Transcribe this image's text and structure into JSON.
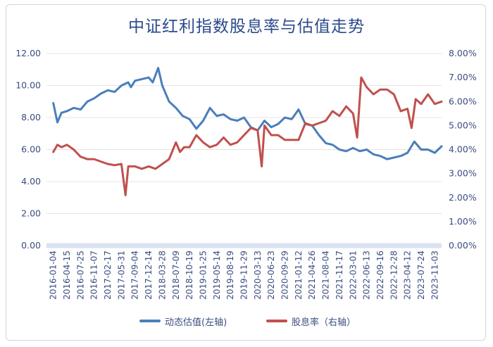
{
  "chart_data": {
    "type": "line",
    "title": "中证红利指数股息率与估值走势",
    "y_left": {
      "ticks": [
        "12.00",
        "10.00",
        "8.00",
        "6.00",
        "4.00",
        "2.00",
        "0.00"
      ],
      "range": [
        0,
        12
      ]
    },
    "y_right": {
      "ticks": [
        "8.00%",
        "7.00%",
        "6.00%",
        "5.00%",
        "4.00%",
        "3.00%",
        "2.00%",
        "1.00%",
        "0.00%"
      ],
      "range": [
        0,
        8
      ]
    },
    "x_ticks": [
      "2016-01-04",
      "2016-04-15",
      "2016-07-25",
      "2016-11-07",
      "2017-02-17",
      "2017-05-31",
      "2017-09-04",
      "2017-12-14",
      "2018-03-28",
      "2018-07-09",
      "2018-10-19",
      "2019-01-25",
      "2019-05-14",
      "2019-08-19",
      "2019-11-29",
      "2020-03-13",
      "2020-06-23",
      "2020-09-29",
      "2021-01-12",
      "2021-04-26",
      "2021-08-04",
      "2021-11-17",
      "2022-03-01",
      "2022-06-13",
      "2022-09-16",
      "2022-12-28",
      "2023-04-12",
      "2023-07-24",
      "2023-11-03"
    ],
    "grid": true,
    "legend_position": "bottom",
    "series": [
      {
        "name": "动态估值(左轴)",
        "axis": "left",
        "color": "#4a7ebb",
        "points": [
          [
            0,
            8.9
          ],
          [
            0.3,
            7.7
          ],
          [
            0.6,
            8.3
          ],
          [
            1,
            8.4
          ],
          [
            1.5,
            8.6
          ],
          [
            2,
            8.5
          ],
          [
            2.5,
            9
          ],
          [
            3,
            9.2
          ],
          [
            3.5,
            9.5
          ],
          [
            4,
            9.7
          ],
          [
            4.5,
            9.6
          ],
          [
            5,
            10
          ],
          [
            5.5,
            10.2
          ],
          [
            5.7,
            9.9
          ],
          [
            6,
            10.3
          ],
          [
            6.5,
            10.4
          ],
          [
            7,
            10.5
          ],
          [
            7.3,
            10.2
          ],
          [
            7.7,
            11.1
          ],
          [
            8,
            10
          ],
          [
            8.5,
            9
          ],
          [
            9,
            8.6
          ],
          [
            9.5,
            8.1
          ],
          [
            10,
            7.9
          ],
          [
            10.5,
            7.3
          ],
          [
            11,
            7.8
          ],
          [
            11.5,
            8.6
          ],
          [
            12,
            8.1
          ],
          [
            12.5,
            8.2
          ],
          [
            13,
            7.9
          ],
          [
            13.5,
            7.8
          ],
          [
            14,
            8
          ],
          [
            14.5,
            7.4
          ],
          [
            15,
            7.2
          ],
          [
            15.5,
            7.8
          ],
          [
            16,
            7.4
          ],
          [
            16.5,
            7.6
          ],
          [
            17,
            8
          ],
          [
            17.5,
            7.9
          ],
          [
            18,
            8.5
          ],
          [
            18.5,
            7.6
          ],
          [
            19,
            7.5
          ],
          [
            19.5,
            6.9
          ],
          [
            20,
            6.4
          ],
          [
            20.5,
            6.3
          ],
          [
            21,
            6
          ],
          [
            21.5,
            5.9
          ],
          [
            22,
            6.1
          ],
          [
            22.5,
            5.9
          ],
          [
            23,
            6
          ],
          [
            23.5,
            5.7
          ],
          [
            24,
            5.6
          ],
          [
            24.5,
            5.4
          ],
          [
            25,
            5.5
          ],
          [
            25.5,
            5.6
          ],
          [
            26,
            5.8
          ],
          [
            26.5,
            6.5
          ],
          [
            27,
            6
          ],
          [
            27.5,
            6
          ],
          [
            28,
            5.8
          ],
          [
            28.5,
            6.2
          ]
        ]
      },
      {
        "name": "股息率（右轴）",
        "axis": "right",
        "color": "#c0504d",
        "points": [
          [
            0,
            3.9
          ],
          [
            0.3,
            4.2
          ],
          [
            0.6,
            4.1
          ],
          [
            1,
            4.2
          ],
          [
            1.5,
            4.0
          ],
          [
            2,
            3.7
          ],
          [
            2.5,
            3.6
          ],
          [
            3,
            3.6
          ],
          [
            3.5,
            3.5
          ],
          [
            4,
            3.4
          ],
          [
            4.5,
            3.35
          ],
          [
            5,
            3.4
          ],
          [
            5.3,
            2.1
          ],
          [
            5.5,
            3.3
          ],
          [
            6,
            3.3
          ],
          [
            6.5,
            3.2
          ],
          [
            7,
            3.3
          ],
          [
            7.5,
            3.2
          ],
          [
            8,
            3.4
          ],
          [
            8.5,
            3.6
          ],
          [
            9,
            4.3
          ],
          [
            9.3,
            3.9
          ],
          [
            9.6,
            4.1
          ],
          [
            10,
            4.1
          ],
          [
            10.5,
            4.6
          ],
          [
            11,
            4.3
          ],
          [
            11.5,
            4.1
          ],
          [
            12,
            4.2
          ],
          [
            12.5,
            4.5
          ],
          [
            13,
            4.2
          ],
          [
            13.5,
            4.3
          ],
          [
            14,
            4.6
          ],
          [
            14.5,
            4.9
          ],
          [
            15,
            4.8
          ],
          [
            15.3,
            3.3
          ],
          [
            15.5,
            5.0
          ],
          [
            16,
            4.6
          ],
          [
            16.5,
            4.6
          ],
          [
            17,
            4.4
          ],
          [
            17.5,
            4.4
          ],
          [
            18,
            4.4
          ],
          [
            18.5,
            5.1
          ],
          [
            19,
            5.0
          ],
          [
            19.5,
            5.1
          ],
          [
            20,
            5.2
          ],
          [
            20.5,
            5.6
          ],
          [
            21,
            5.4
          ],
          [
            21.5,
            5.8
          ],
          [
            22,
            5.5
          ],
          [
            22.3,
            4.5
          ],
          [
            22.6,
            7.0
          ],
          [
            23,
            6.6
          ],
          [
            23.5,
            6.3
          ],
          [
            24,
            6.5
          ],
          [
            24.5,
            6.5
          ],
          [
            25,
            6.3
          ],
          [
            25.5,
            5.6
          ],
          [
            26,
            5.7
          ],
          [
            26.3,
            4.9
          ],
          [
            26.6,
            6.1
          ],
          [
            27,
            5.9
          ],
          [
            27.5,
            6.3
          ],
          [
            28,
            5.9
          ],
          [
            28.5,
            6.0
          ]
        ]
      }
    ]
  },
  "legend": [
    {
      "label": "动态估值(左轴)",
      "color": "#4a7ebb"
    },
    {
      "label": "股息率（右轴）",
      "color": "#c0504d"
    }
  ]
}
